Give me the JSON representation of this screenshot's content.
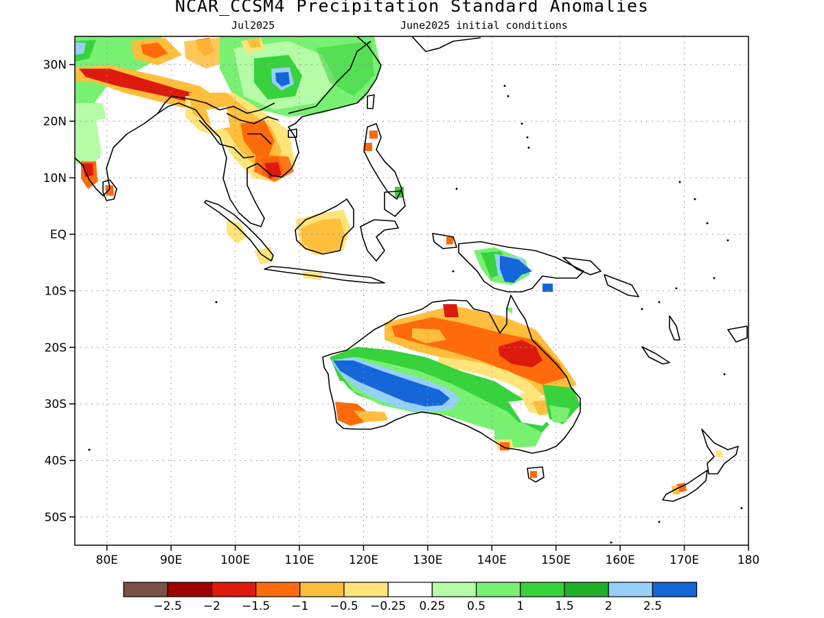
{
  "header": {
    "title": "NCAR_CCSM4 Precipitation Standard Anomalies",
    "target_month": "Jul2025",
    "init_conditions": "June2025 initial conditions"
  },
  "map": {
    "projection": "cylindrical",
    "lon_range": [
      75,
      180
    ],
    "lat_range": [
      -55,
      35
    ],
    "lat_ticks": [
      {
        "value": 30,
        "label": "30N"
      },
      {
        "value": 20,
        "label": "20N"
      },
      {
        "value": 10,
        "label": "10N"
      },
      {
        "value": 0,
        "label": "EQ"
      },
      {
        "value": -10,
        "label": "10S"
      },
      {
        "value": -20,
        "label": "20S"
      },
      {
        "value": -30,
        "label": "30S"
      },
      {
        "value": -40,
        "label": "40S"
      },
      {
        "value": -50,
        "label": "50S"
      }
    ],
    "lon_ticks": [
      {
        "value": 80,
        "label": "80E"
      },
      {
        "value": 90,
        "label": "90E"
      },
      {
        "value": 100,
        "label": "100E"
      },
      {
        "value": 110,
        "label": "110E"
      },
      {
        "value": 120,
        "label": "120E"
      },
      {
        "value": 130,
        "label": "130E"
      },
      {
        "value": 140,
        "label": "140E"
      },
      {
        "value": 150,
        "label": "150E"
      },
      {
        "value": 160,
        "label": "160E"
      },
      {
        "value": 170,
        "label": "170E"
      },
      {
        "value": 180,
        "label": "180"
      }
    ],
    "gridlines": true
  },
  "legend": {
    "colors": [
      "#7a5146",
      "#a00000",
      "#dd1a0e",
      "#ff6a0a",
      "#ffbe3c",
      "#ffe47a",
      "#ffffff",
      "#b6fba6",
      "#78f072",
      "#38d23c",
      "#1fb02a",
      "#96d0fa",
      "#1566d8"
    ],
    "labels": [
      "−2.5",
      "−2",
      "−1.5",
      "−1",
      "−0.5",
      "−0.25",
      "0.25",
      "0.5",
      "1",
      "1.5",
      "2",
      "2.5"
    ]
  },
  "anomaly_regions": [
    {
      "name": "western-australia-wet-band",
      "category": "2.5",
      "color": "#1566d8"
    },
    {
      "name": "northeast-australia-dry",
      "category": "−1.5",
      "color": "#dd1a0e"
    },
    {
      "name": "new-guinea-wet",
      "category": "2.5",
      "color": "#1566d8"
    },
    {
      "name": "indochina-dry",
      "category": "−1",
      "color": "#ff6a0a"
    },
    {
      "name": "borneo-dry",
      "category": "−0.5",
      "color": "#ffbe3c"
    },
    {
      "name": "south-china-wet",
      "category": "2.5",
      "color": "#1566d8"
    }
  ]
}
